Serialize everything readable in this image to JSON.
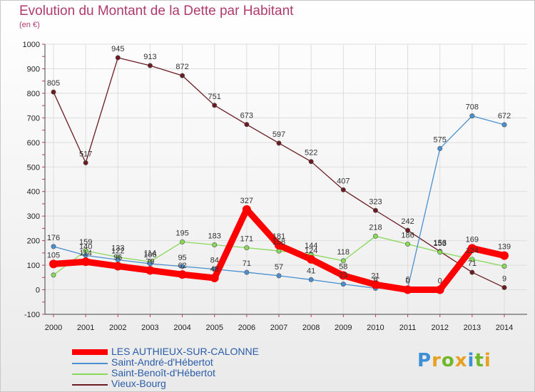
{
  "chart_data": {
    "type": "line",
    "title": "Evolution du Montant de la Dette par Habitant",
    "ylabel": "(en €)",
    "xlabel": "",
    "ylim": [
      -100,
      1000
    ],
    "yticks": [
      -100,
      0,
      100,
      200,
      300,
      400,
      500,
      600,
      700,
      800,
      900,
      1000
    ],
    "categories": [
      "2000",
      "2001",
      "2002",
      "2003",
      "2004",
      "2005",
      "2006",
      "2007",
      "2008",
      "2009",
      "2010",
      "2011",
      "2012",
      "2013",
      "2014"
    ],
    "series": [
      {
        "name": "LES AUTHIEUX-SUR-CALONNE",
        "color": "#ff0000",
        "thick": true,
        "values": [
          105,
          114,
          96,
          79,
          62,
          48,
          327,
          181,
          124,
          58,
          21,
          0,
          0,
          169,
          139
        ],
        "labels": [
          "105",
          "114",
          "96",
          "79",
          "62",
          "48",
          "327",
          "181",
          "124",
          "58",
          "21",
          "0",
          "0",
          "169",
          "139"
        ]
      },
      {
        "name": "Saint-André-d'Hébertot",
        "color": "#4a90d0",
        "thick": false,
        "values": [
          176,
          140,
          122,
          106,
          95,
          84,
          71,
          57,
          41,
          23,
          6,
          6,
          575,
          708,
          672
        ],
        "labels": [
          "176",
          "140",
          "122",
          "106",
          "95",
          "84",
          "71",
          "57",
          "41",
          "23",
          "6",
          "6",
          "575",
          "708",
          "672"
        ]
      },
      {
        "name": "Saint-Benoît-d'Hébertot",
        "color": "#88d85a",
        "thick": false,
        "values": [
          60,
          159,
          133,
          114,
          195,
          183,
          171,
          158,
          144,
          118,
          218,
          186,
          153,
          124,
          96
        ],
        "labels": [
          "",
          "159",
          "133",
          "114",
          "195",
          "183",
          "171",
          "158",
          "144",
          "118",
          "218",
          "186",
          "153",
          "124",
          ""
        ]
      },
      {
        "name": "Vieux-Bourg",
        "color": "#6b1c22",
        "thick": false,
        "values": [
          805,
          517,
          945,
          913,
          872,
          751,
          673,
          597,
          522,
          407,
          323,
          242,
          156,
          71,
          9
        ],
        "labels": [
          "805",
          "517",
          "945",
          "913",
          "872",
          "751",
          "673",
          "597",
          "522",
          "407",
          "323",
          "242",
          "156",
          "71",
          "9"
        ]
      }
    ]
  },
  "logo": {
    "letters": [
      "P",
      "r",
      "o",
      "x",
      "i",
      "t",
      "i"
    ],
    "colors": [
      "#3d8fd6",
      "#e8a020",
      "#70b82a",
      "#e8a020",
      "#3d8fd6",
      "#70b82a",
      "#e8a020"
    ]
  }
}
